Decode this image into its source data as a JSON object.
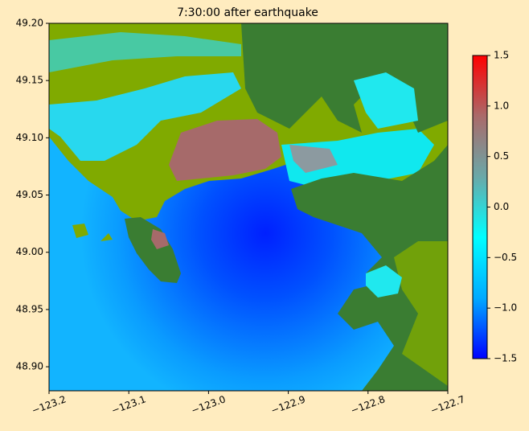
{
  "chart_data": {
    "type": "heatmap",
    "title": "7:30:00 after earthquake",
    "xlim": [
      -123.2,
      -122.7
    ],
    "xticks": [
      {
        "value": -123.2,
        "label": "−123.2"
      },
      {
        "value": -123.1,
        "label": "−123.1"
      },
      {
        "value": -123.0,
        "label": "−123.0"
      },
      {
        "value": -122.9,
        "label": "−122.9"
      },
      {
        "value": -122.8,
        "label": "−122.8"
      },
      {
        "value": -122.7,
        "label": "−122.7"
      }
    ],
    "ylim": [
      48.879,
      49.2
    ],
    "yticks": [
      {
        "value": 48.9,
        "label": "48.90"
      },
      {
        "value": 48.95,
        "label": "48.95"
      },
      {
        "value": 49.0,
        "label": "49.00"
      },
      {
        "value": 49.05,
        "label": "49.05"
      },
      {
        "value": 49.1,
        "label": "49.10"
      },
      {
        "value": 49.15,
        "label": "49.15"
      },
      {
        "value": 49.2,
        "label": "49.20"
      }
    ],
    "colorbar": {
      "lim": [
        -1.5,
        1.5
      ],
      "ticks": [
        {
          "value": -1.5,
          "label": "−1.5"
        },
        {
          "value": -1.0,
          "label": "−1.0"
        },
        {
          "value": -0.5,
          "label": "−0.5"
        },
        {
          "value": 0.0,
          "label": "0.0"
        },
        0.5,
        {
          "value": 1.0,
          "label": "1.0"
        },
        1.5
      ],
      "colors": [
        "#0000ff",
        "#00aaff",
        "#00ffff",
        "#6aa8a8",
        "#aa6a6a",
        "#ff0000"
      ]
    }
  }
}
